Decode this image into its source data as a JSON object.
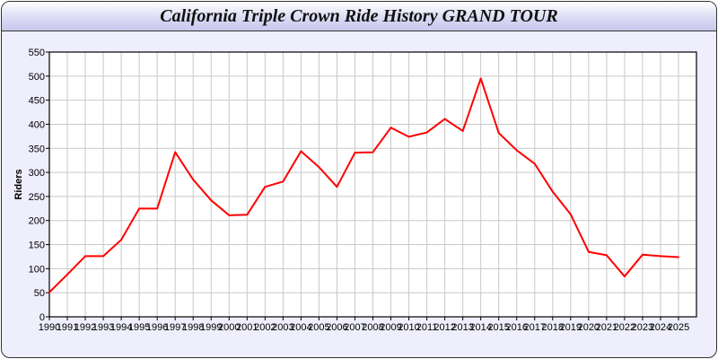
{
  "chart_data": {
    "type": "line",
    "title": "California Triple Crown Ride History GRAND TOUR",
    "xlabel": "",
    "ylabel": "Riders",
    "x": [
      1990,
      1991,
      1992,
      1993,
      1994,
      1995,
      1996,
      1997,
      1998,
      1999,
      2000,
      2001,
      2002,
      2003,
      2004,
      2005,
      2006,
      2007,
      2008,
      2009,
      2010,
      2011,
      2012,
      2013,
      2014,
      2015,
      2016,
      2017,
      2018,
      2019,
      2020,
      2021,
      2022,
      2023,
      2024,
      2025
    ],
    "series": [
      {
        "values": [
          51,
          88,
          126,
          126,
          160,
          225,
          225,
          342,
          285,
          242,
          211,
          212,
          270,
          281,
          344,
          311,
          270,
          341,
          342,
          393,
          374,
          383,
          411,
          386,
          495,
          382,
          346,
          318,
          260,
          213,
          135,
          128,
          84,
          129,
          126,
          124
        ],
        "color": "#ff0000"
      }
    ],
    "ylim": [
      0,
      550
    ],
    "yticks": [
      0,
      50,
      100,
      150,
      200,
      250,
      300,
      350,
      400,
      450,
      500,
      550
    ],
    "xlim": [
      1990,
      2026
    ],
    "grid": true,
    "legend": "none"
  }
}
